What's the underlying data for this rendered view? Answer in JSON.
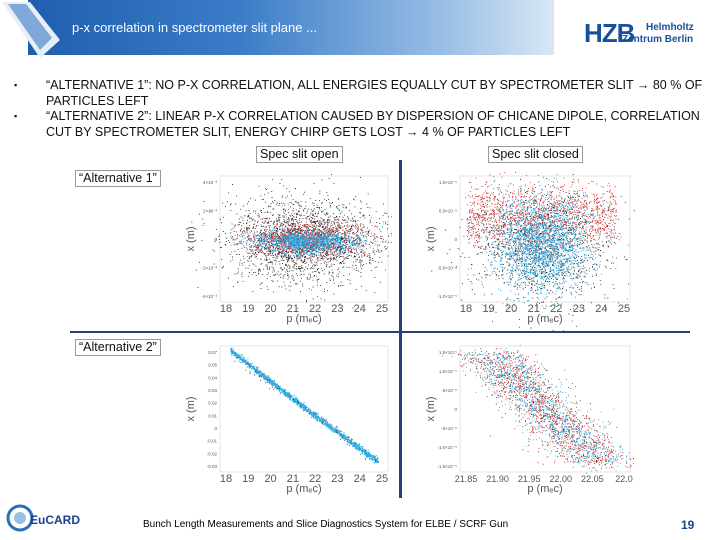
{
  "header": {
    "title": "p-x correlation in spectrometer slit plane ..."
  },
  "logo": {
    "main": "HZB",
    "line1": "Helmholtz",
    "line2": "Zentrum Berlin"
  },
  "bullets": [
    {
      "mark": "▪",
      "text": "“ALTERNATIVE 1”: NO P-X CORRELATION, ALL ENERGIES EQUALLY CUT BY SPECTROMETER SLIT → 80 % OF PARTICLES LEFT"
    },
    {
      "mark": "▪",
      "text": "“ALTERNATIVE 2”: LINEAR P-X CORRELATION CAUSED BY DISPERSION OF CHICANE DIPOLE, CORRELATION CUT BY SPECTROMETER SLIT, ENERGY CHIRP GETS LOST → 4 % OF PARTICLES LEFT"
    }
  ],
  "labels": {
    "spec_open": "Spec slit open",
    "spec_closed": "Spec slit closed",
    "alt1": "“Alternative 1”",
    "alt2": "“Alternative 2”"
  },
  "plots": {
    "tl": {
      "xlabel": "p (mₑc)",
      "ylabel": "x (m)",
      "xticks": [
        "18",
        "19",
        "20",
        "21",
        "22",
        "23",
        "24",
        "25"
      ],
      "yticks": [
        "4×10⁻³",
        "2×10⁻³",
        "0",
        "-2×10⁻³",
        "-4×10⁻³"
      ]
    },
    "tr": {
      "xlabel": "p (mₑc)",
      "ylabel": "x (m)",
      "xticks": [
        "18",
        "19",
        "20",
        "21",
        "22",
        "23",
        "24",
        "25"
      ],
      "yticks": [
        "1.0×10⁻⁵",
        "5.0×10⁻⁶",
        "0",
        "-5.0×10⁻⁶",
        "-1.0×10⁻⁵"
      ]
    },
    "bl": {
      "xlabel": "p (mₑc)",
      "ylabel": "x (m)",
      "xticks": [
        "18",
        "19",
        "20",
        "21",
        "22",
        "23",
        "24",
        "25"
      ],
      "yticks": [
        "0.07",
        "0.05",
        "0.04",
        "0.03",
        "0.02",
        "0.01",
        "0",
        "-0.01",
        "-0.02",
        "-0.03"
      ]
    },
    "br": {
      "xlabel": "p (mₑc)",
      "ylabel": "x (m)",
      "xticks": [
        "21.85",
        "21.90",
        "21.95",
        "22.00",
        "22.05",
        "22.0"
      ],
      "yticks": [
        "1.5×10⁻⁵",
        "1.0×10⁻⁵",
        "5×10⁻⁶",
        "0",
        "-5×10⁻⁶",
        "-1.0×10⁻⁵",
        "-1.5×10⁻⁵"
      ]
    }
  },
  "footer": {
    "text": "Bunch Length Measurements and Slice Diagnostics System for ELBE / SCRF Gun",
    "page": "19"
  },
  "eucard": {
    "name": "EuCARD"
  },
  "colors": {
    "accent": "#1f5fae",
    "divider": "#2c3e77",
    "black_points": "#222222",
    "red_points": "#d61f1f",
    "cyan_points": "#2aa7e0"
  }
}
